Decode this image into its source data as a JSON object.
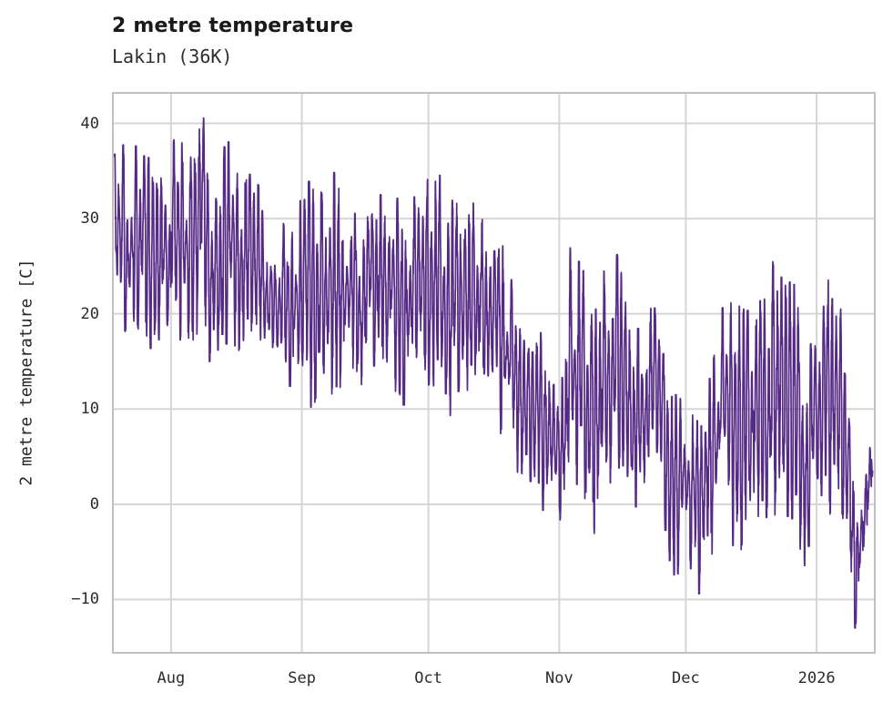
{
  "chart_data": {
    "type": "line",
    "title": "2 metre temperature",
    "subtitle": "Lakin (36K)",
    "ylabel": "2 metre temperature [C]",
    "xlabel": "",
    "legend": "none",
    "grid": true,
    "line_color": "#552a85",
    "grid_color": "#d5d5d5",
    "spine_color": "#c0c0c0",
    "x_ticks": [
      {
        "label": "Aug",
        "day": 14
      },
      {
        "label": "Sep",
        "day": 45
      },
      {
        "label": "Oct",
        "day": 75
      },
      {
        "label": "Nov",
        "day": 106
      },
      {
        "label": "Dec",
        "day": 136
      },
      {
        "label": "2026",
        "day": 167
      }
    ],
    "y_ticks": [
      {
        "label": "40",
        "value": 40
      },
      {
        "label": "30",
        "value": 30
      },
      {
        "label": "20",
        "value": 20
      },
      {
        "label": "10",
        "value": 10
      },
      {
        "label": "0",
        "value": 0
      },
      {
        "label": "−10",
        "value": -10
      }
    ],
    "xlim_days": [
      0,
      181
    ],
    "ylim": [
      -15.7,
      43.3
    ],
    "data_start_day": 0.55,
    "data_end_day": 180.3,
    "samples_per_day": 24,
    "seed": 20260114,
    "series_name": "2 metre temperature",
    "value_max": 41.2,
    "value_min": -12.6,
    "envelope_day_low_high": [
      [
        0,
        19,
        37.3
      ],
      [
        4,
        18,
        37.5
      ],
      [
        8,
        17,
        36.8
      ],
      [
        11,
        16,
        33
      ],
      [
        14,
        16.5,
        38.5
      ],
      [
        18,
        18,
        37
      ],
      [
        21,
        17,
        41.2
      ],
      [
        24,
        15,
        35
      ],
      [
        28,
        17,
        38.5
      ],
      [
        32,
        16,
        35.5
      ],
      [
        35,
        17.5,
        33.8
      ],
      [
        37,
        17,
        28.5
      ],
      [
        40,
        14,
        29
      ],
      [
        43,
        12.5,
        30.5
      ],
      [
        46,
        11,
        34.3
      ],
      [
        49,
        10,
        32
      ],
      [
        52,
        11.5,
        35.2
      ],
      [
        55,
        12,
        31.5
      ],
      [
        60,
        13,
        31
      ],
      [
        65,
        14.5,
        32.8
      ],
      [
        70,
        10,
        31
      ],
      [
        74,
        12,
        33.5
      ],
      [
        77,
        13,
        34.9
      ],
      [
        80,
        9,
        31.5
      ],
      [
        85,
        11.5,
        31.6
      ],
      [
        89,
        14,
        29.5
      ],
      [
        92,
        8.5,
        28
      ],
      [
        95,
        4,
        22.5
      ],
      [
        98,
        3.5,
        17
      ],
      [
        101,
        1.2,
        18
      ],
      [
        104,
        -2,
        16
      ],
      [
        106.5,
        -5,
        14
      ],
      [
        108,
        0,
        27.5
      ],
      [
        112,
        0,
        24
      ],
      [
        114.5,
        -7.2,
        21
      ],
      [
        117,
        3,
        25
      ],
      [
        119,
        1,
        28
      ],
      [
        122,
        1.5,
        21
      ],
      [
        125,
        -1,
        17.5
      ],
      [
        128,
        2,
        21.5
      ],
      [
        131,
        -3,
        15
      ],
      [
        133.5,
        -9,
        11.5
      ],
      [
        136,
        -6,
        10
      ],
      [
        139.5,
        -9.8,
        8
      ],
      [
        143,
        -4,
        18
      ],
      [
        146,
        -2,
        22.8
      ],
      [
        149,
        -6,
        20
      ],
      [
        151,
        -2,
        23.5
      ],
      [
        154,
        -1.5,
        20.5
      ],
      [
        157,
        -1,
        26
      ],
      [
        160,
        0,
        26
      ],
      [
        162.5,
        -5,
        22
      ],
      [
        164,
        -9,
        16
      ],
      [
        167,
        -3,
        20
      ],
      [
        170,
        -2,
        23.8
      ],
      [
        172.5,
        0,
        20.5
      ],
      [
        174.5,
        -4,
        13
      ],
      [
        176.5,
        -12.6,
        2
      ],
      [
        178.5,
        -5,
        5
      ],
      [
        180.3,
        2,
        8
      ]
    ]
  }
}
